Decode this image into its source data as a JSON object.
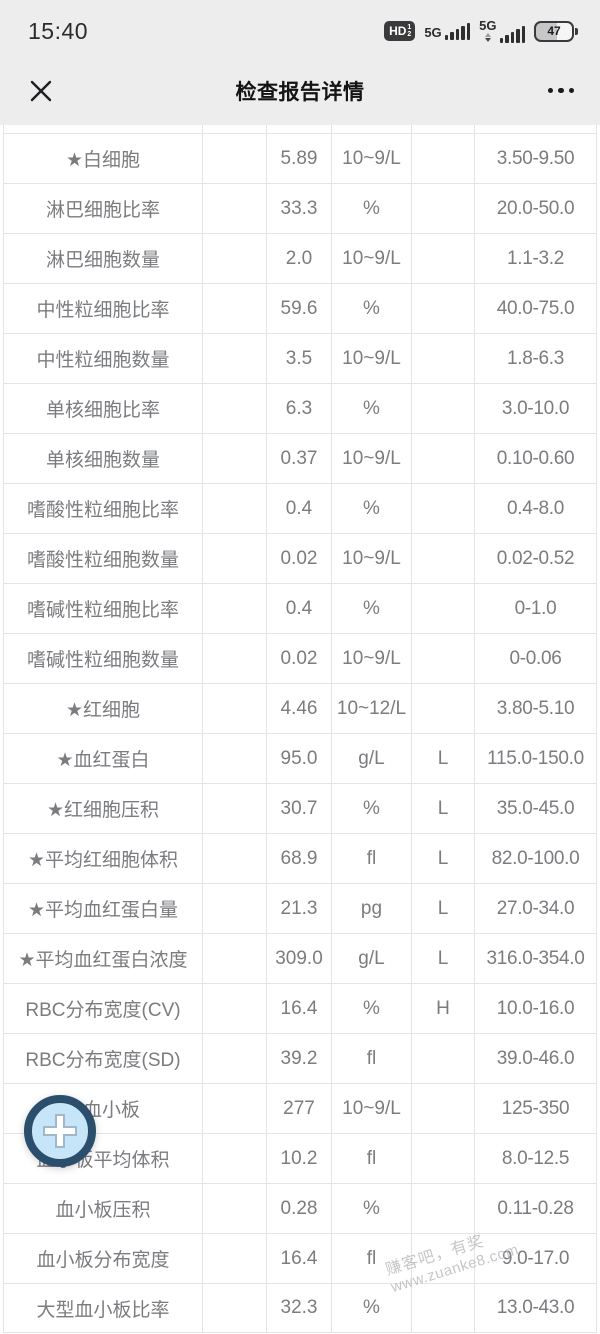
{
  "status_bar": {
    "time": "15:40",
    "hd": {
      "label": "HD",
      "sup": "1",
      "sub": "2"
    },
    "networks": [
      {
        "label": "5G"
      },
      {
        "label": "5G"
      }
    ],
    "battery_percent": "47"
  },
  "nav": {
    "title": "检查报告详情"
  },
  "table": {
    "rows": [
      {
        "name": "★白细胞",
        "value": "5.89",
        "unit": "10~9/L",
        "flag": "",
        "range": "3.50-9.50"
      },
      {
        "name": "淋巴细胞比率",
        "value": "33.3",
        "unit": "%",
        "flag": "",
        "range": "20.0-50.0"
      },
      {
        "name": "淋巴细胞数量",
        "value": "2.0",
        "unit": "10~9/L",
        "flag": "",
        "range": "1.1-3.2"
      },
      {
        "name": "中性粒细胞比率",
        "value": "59.6",
        "unit": "%",
        "flag": "",
        "range": "40.0-75.0"
      },
      {
        "name": "中性粒细胞数量",
        "value": "3.5",
        "unit": "10~9/L",
        "flag": "",
        "range": "1.8-6.3"
      },
      {
        "name": "单核细胞比率",
        "value": "6.3",
        "unit": "%",
        "flag": "",
        "range": "3.0-10.0"
      },
      {
        "name": "单核细胞数量",
        "value": "0.37",
        "unit": "10~9/L",
        "flag": "",
        "range": "0.10-0.60"
      },
      {
        "name": "嗜酸性粒细胞比率",
        "value": "0.4",
        "unit": "%",
        "flag": "",
        "range": "0.4-8.0"
      },
      {
        "name": "嗜酸性粒细胞数量",
        "value": "0.02",
        "unit": "10~9/L",
        "flag": "",
        "range": "0.02-0.52"
      },
      {
        "name": "嗜碱性粒细胞比率",
        "value": "0.4",
        "unit": "%",
        "flag": "",
        "range": "0-1.0"
      },
      {
        "name": "嗜碱性粒细胞数量",
        "value": "0.02",
        "unit": "10~9/L",
        "flag": "",
        "range": "0-0.06"
      },
      {
        "name": "★红细胞",
        "value": "4.46",
        "unit": "10~12/L",
        "flag": "",
        "range": "3.80-5.10"
      },
      {
        "name": "★血红蛋白",
        "value": "95.0",
        "unit": "g/L",
        "flag": "L",
        "range": "115.0-150.0"
      },
      {
        "name": "★红细胞压积",
        "value": "30.7",
        "unit": "%",
        "flag": "L",
        "range": "35.0-45.0"
      },
      {
        "name": "★平均红细胞体积",
        "value": "68.9",
        "unit": "fl",
        "flag": "L",
        "range": "82.0-100.0"
      },
      {
        "name": "★平均血红蛋白量",
        "value": "21.3",
        "unit": "pg",
        "flag": "L",
        "range": "27.0-34.0"
      },
      {
        "name": "★平均血红蛋白浓度",
        "value": "309.0",
        "unit": "g/L",
        "flag": "L",
        "range": "316.0-354.0"
      },
      {
        "name": "RBC分布宽度(CV)",
        "value": "16.4",
        "unit": "%",
        "flag": "H",
        "range": "10.0-16.0"
      },
      {
        "name": "RBC分布宽度(SD)",
        "value": "39.2",
        "unit": "fl",
        "flag": "",
        "range": "39.0-46.0"
      },
      {
        "name": "★血小板",
        "value": "277",
        "unit": "10~9/L",
        "flag": "",
        "range": "125-350"
      },
      {
        "name": "血小板平均体积",
        "value": "10.2",
        "unit": "fl",
        "flag": "",
        "range": "8.0-12.5"
      },
      {
        "name": "血小板压积",
        "value": "0.28",
        "unit": "%",
        "flag": "",
        "range": "0.11-0.28"
      },
      {
        "name": "血小板分布宽度",
        "value": "16.4",
        "unit": "fl",
        "flag": "",
        "range": "9.0-17.0"
      },
      {
        "name": "大型血小板比率",
        "value": "32.3",
        "unit": "%",
        "flag": "",
        "range": "13.0-43.0"
      }
    ]
  },
  "watermark": {
    "line1": "赚客吧，有奖",
    "line2": "www.zuanke8.com"
  },
  "colors": {
    "fab_ring": "#2b4e6c",
    "fab_fill": "#c7e5f8",
    "header_bg": "#ededee",
    "table_line": "#e3e4e6",
    "cell_text": "#7b7c7f"
  }
}
